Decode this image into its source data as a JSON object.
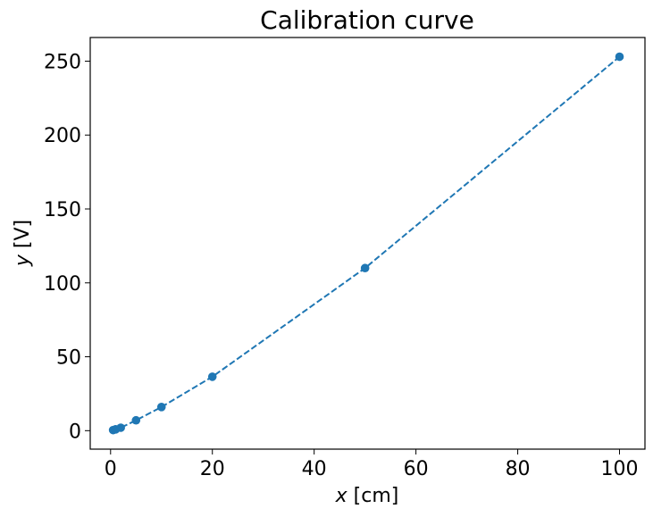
{
  "chart_data": {
    "type": "line",
    "title": "Calibration curve",
    "xlabel": {
      "var": "x",
      "unit": " [cm]"
    },
    "ylabel": {
      "var": "y",
      "unit": " [V]"
    },
    "xlim": [
      -4,
      105
    ],
    "ylim": [
      -12.5,
      266
    ],
    "x_ticks": [
      0,
      20,
      40,
      60,
      80,
      100
    ],
    "y_ticks": [
      0,
      50,
      100,
      150,
      200,
      250
    ],
    "grid": false,
    "series": [
      {
        "x": [
          0.5,
          1,
          2,
          5,
          10,
          20,
          50,
          100
        ],
        "y": [
          0.4,
          0.9,
          2.0,
          7.0,
          16.0,
          36.5,
          110.0,
          253.0
        ],
        "color": "#1f77b4",
        "line_style": "dashed",
        "marker": "circle"
      }
    ]
  }
}
